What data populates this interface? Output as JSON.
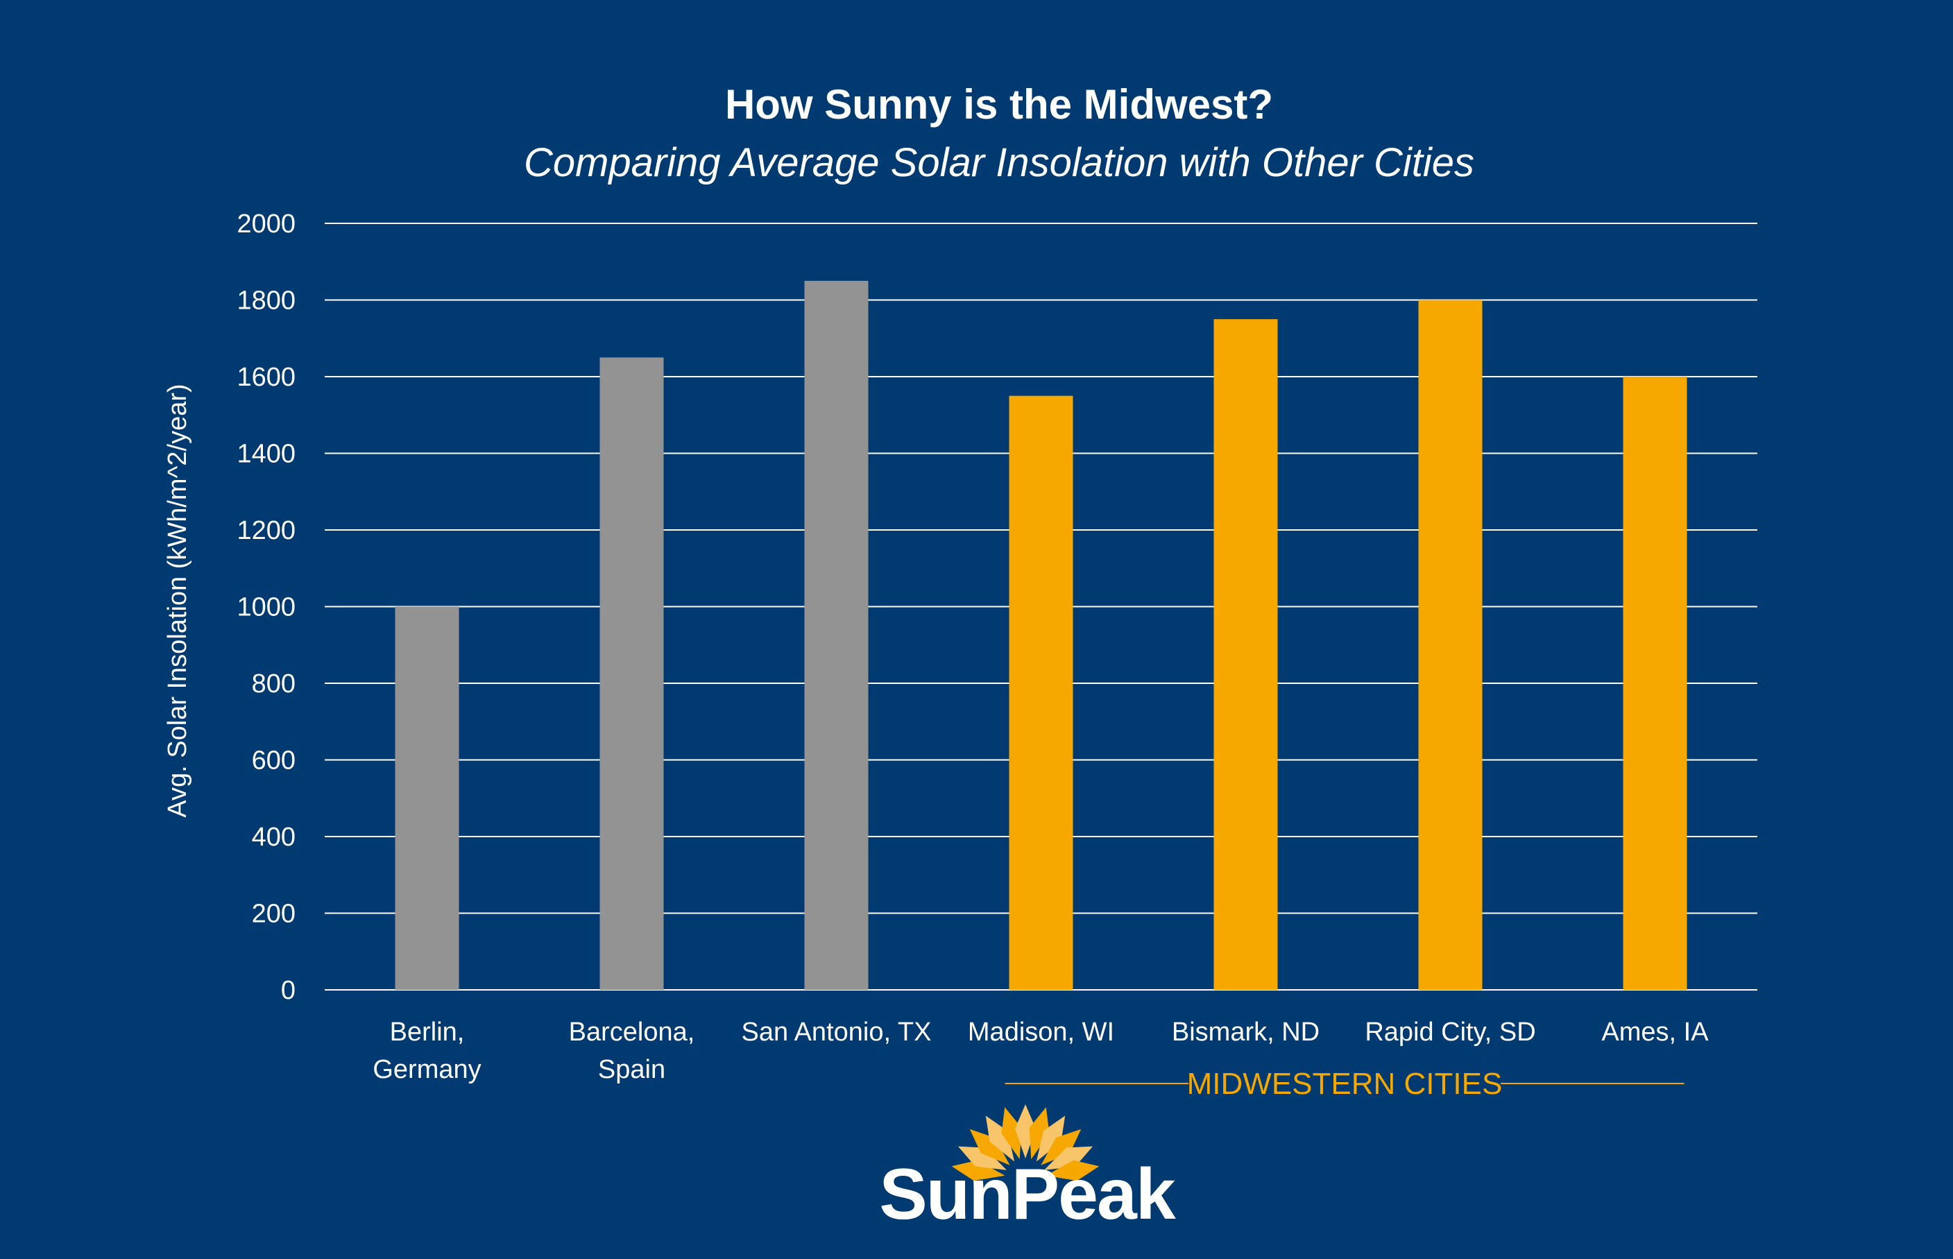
{
  "chart_data": {
    "type": "bar",
    "title": "How Sunny is the Midwest?",
    "subtitle": "Comparing Average Solar Insolation with Other Cities",
    "ylabel": "Avg. Solar Insolation (kWh/m^2/year)",
    "xlabel": "",
    "ylim": [
      0,
      2000
    ],
    "yticks": [
      0,
      200,
      400,
      600,
      800,
      1000,
      1200,
      1400,
      1600,
      1800,
      2000
    ],
    "grid": true,
    "categories": [
      [
        "Berlin,",
        "Germany"
      ],
      [
        "Barcelona,",
        "Spain"
      ],
      [
        "San Antonio, TX"
      ],
      [
        "Madison, WI"
      ],
      [
        "Bismark, ND"
      ],
      [
        "Rapid City, SD"
      ],
      [
        "Ames, IA"
      ]
    ],
    "values": [
      1000,
      1650,
      1850,
      1550,
      1750,
      1800,
      1600
    ],
    "groups": [
      "other",
      "other",
      "other",
      "midwest",
      "midwest",
      "midwest",
      "midwest"
    ],
    "group_label": "MIDWESTERN CITIES"
  },
  "colors": {
    "background": "#003a70",
    "other_bar": "#939393",
    "midwest_bar": "#f6a800",
    "gridline": "#ffffff",
    "text": "#ffffff"
  },
  "logo": {
    "text": "SunPeak",
    "icon": "sunburst-icon"
  }
}
